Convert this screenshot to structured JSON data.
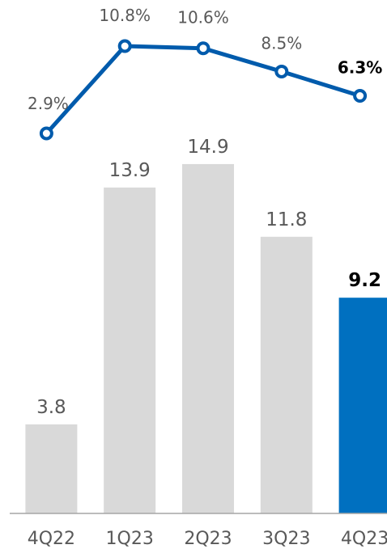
{
  "colors": {
    "bar": "#d9d9d9",
    "bar_highlight": "#0070c0",
    "line": "#005bac",
    "marker_fill": "#ffffff",
    "axis": "#a6a6a6",
    "text": "#595959",
    "text_highlight": "#000000"
  },
  "chart_data": {
    "type": "bar",
    "categories": [
      "4Q22",
      "1Q23",
      "2Q23",
      "3Q23",
      "4Q23"
    ],
    "series": [
      {
        "type": "bar",
        "values": [
          3.8,
          13.9,
          14.9,
          11.8,
          9.2
        ],
        "labels": [
          "3.8",
          "13.9",
          "14.9",
          "11.8",
          "9.2"
        ]
      },
      {
        "type": "line",
        "values": [
          2.9,
          10.8,
          10.6,
          8.5,
          6.3
        ],
        "labels": [
          "2.9%",
          "10.8%",
          "10.6%",
          "8.5%",
          "6.3%"
        ]
      }
    ],
    "highlight_index": 4,
    "title": "",
    "xlabel": "",
    "ylabel": "",
    "grid": false
  }
}
